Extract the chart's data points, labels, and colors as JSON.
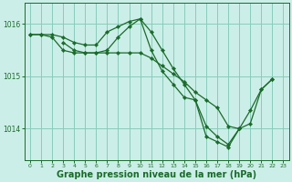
{
  "background_color": "#cceee8",
  "grid_color": "#88ccbb",
  "line_color": "#1a6b2a",
  "marker_color": "#1a6b2a",
  "xlabel": "Graphe pression niveau de la mer (hPa)",
  "xlabel_fontsize": 7,
  "xlabel_bold": true,
  "ylim": [
    1013.4,
    1016.4
  ],
  "xlim": [
    -0.5,
    23.5
  ],
  "yticks": [
    1014,
    1015,
    1016
  ],
  "xticks": [
    0,
    1,
    2,
    3,
    4,
    5,
    6,
    7,
    8,
    9,
    10,
    11,
    12,
    13,
    14,
    15,
    16,
    17,
    18,
    19,
    20,
    21,
    22,
    23
  ],
  "lines": [
    {
      "x": [
        0,
        1,
        2,
        3,
        4,
        5,
        6,
        7,
        8,
        9,
        10,
        11,
        12,
        13,
        14,
        15,
        16,
        17,
        18,
        19,
        20,
        21,
        22
      ],
      "y": [
        1015.8,
        1015.8,
        1015.8,
        1015.75,
        1015.65,
        1015.6,
        1015.6,
        1015.85,
        1015.95,
        1016.05,
        1016.1,
        1015.85,
        1015.5,
        1015.15,
        1014.85,
        1014.55,
        1013.85,
        1013.75,
        1013.65,
        1014.0,
        1014.35,
        1014.75,
        1014.95
      ]
    },
    {
      "x": [
        0,
        1,
        2,
        3,
        4,
        5,
        6,
        7,
        8,
        9,
        10,
        11,
        12,
        13,
        14,
        15,
        16,
        17,
        18,
        19
      ],
      "y": [
        1015.8,
        1015.8,
        1015.75,
        1015.5,
        1015.45,
        1015.45,
        1015.45,
        1015.45,
        1015.45,
        1015.45,
        1015.45,
        1015.35,
        1015.2,
        1015.05,
        1014.9,
        1014.7,
        1014.55,
        1014.4,
        1014.05,
        1014.0
      ]
    },
    {
      "x": [
        3,
        4,
        5,
        6,
        7,
        8,
        9,
        10,
        11,
        12,
        13,
        14,
        15,
        16,
        17,
        18,
        19,
        20,
        21,
        22
      ],
      "y": [
        1015.65,
        1015.5,
        1015.45,
        1015.45,
        1015.5,
        1015.75,
        1015.95,
        1016.1,
        1015.5,
        1015.1,
        1014.85,
        1014.6,
        1014.55,
        1014.05,
        1013.85,
        1013.7,
        1014.0,
        1014.1,
        1014.75,
        1014.95
      ]
    }
  ]
}
